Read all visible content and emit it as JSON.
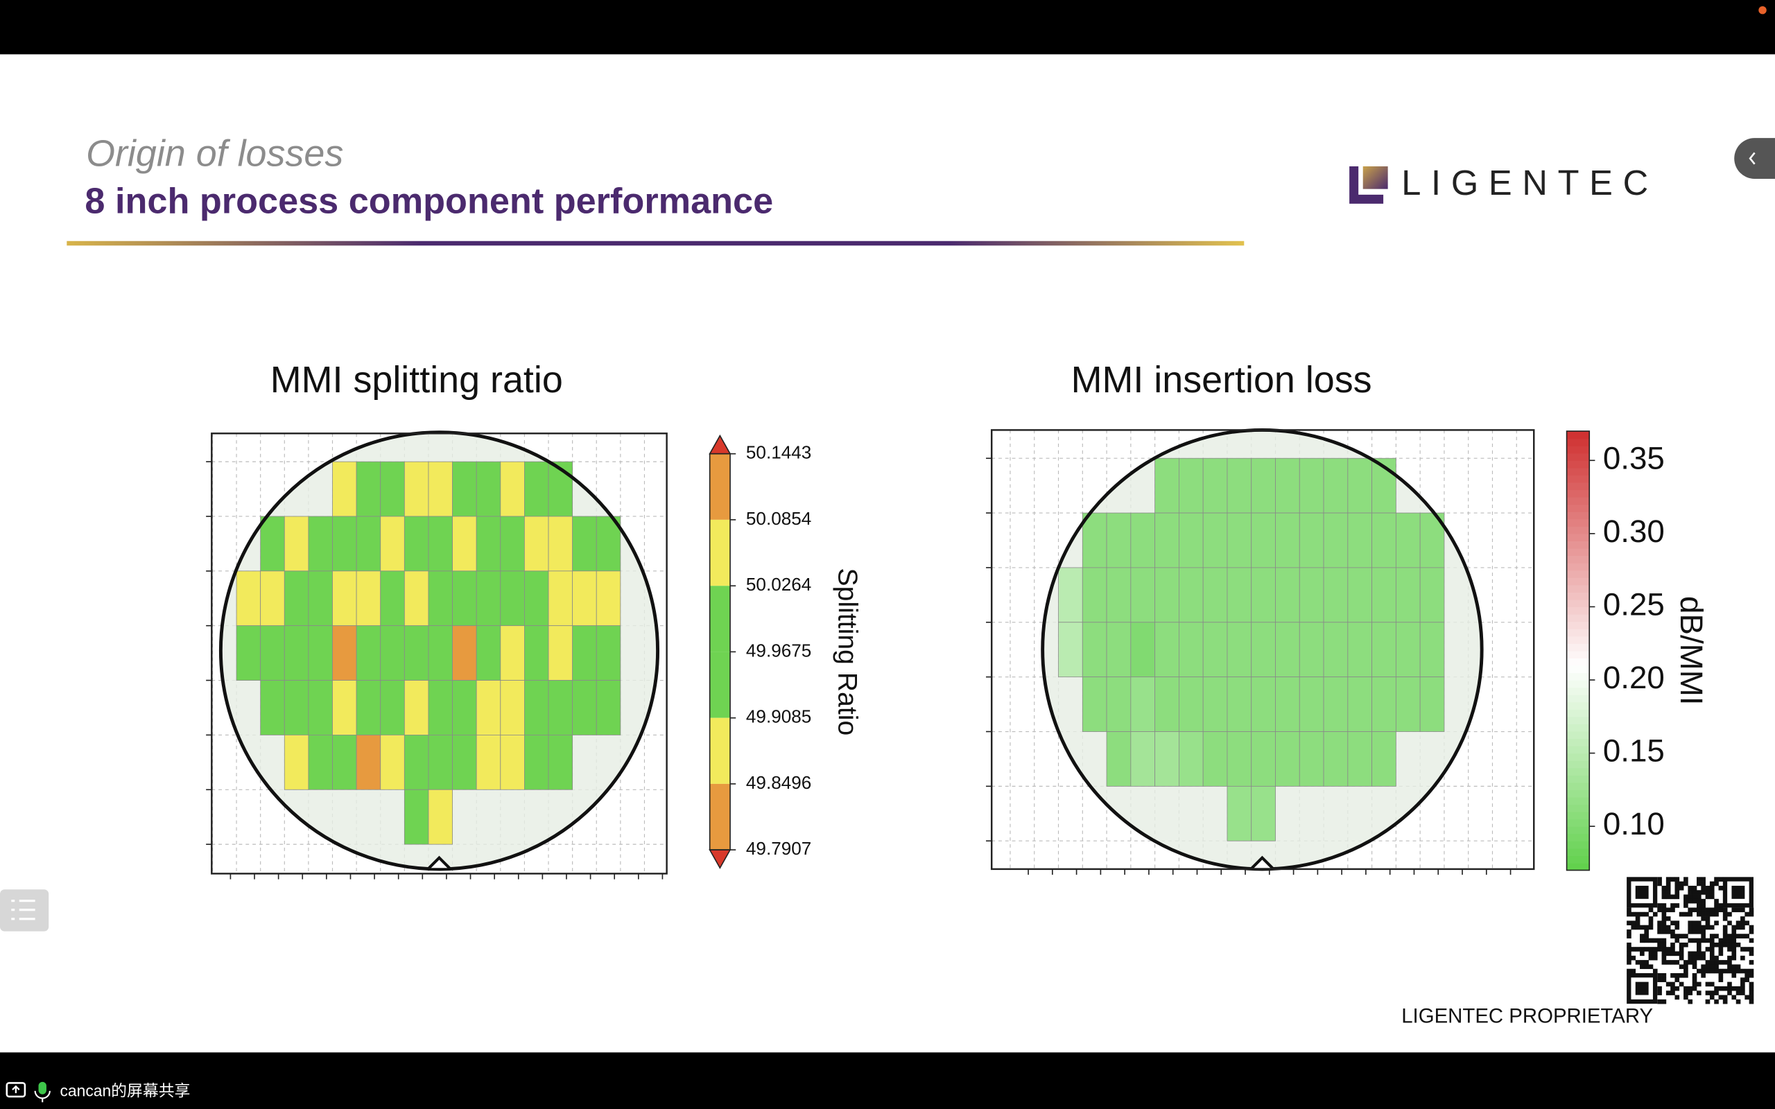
{
  "screen_share": {
    "user_label": "cancan的屏幕共享"
  },
  "slide": {
    "kicker": "Origin of losses",
    "title": "8 inch process component performance",
    "logo": "LIGENTEC",
    "footer": "LIGENTEC PROPRIETARY"
  },
  "chart_data": [
    {
      "type": "heatmap",
      "title": "MMI splitting ratio",
      "colorbar_label": "Splitting Ratio",
      "colormap": "discrete",
      "colorbar_lim": [
        49.7907,
        50.1443
      ],
      "colorbar_ticks": [
        50.1443,
        50.0854,
        50.0264,
        49.9675,
        49.9085,
        49.8496,
        49.7907
      ],
      "bin_colors": [
        "#e79a3f",
        "#f2ea5c",
        "#6fd352",
        "#6fd352",
        "#f2ea5c",
        "#e79a3f"
      ],
      "extend_color": "#d8392b",
      "values": [
        [
          null,
          null,
          null,
          null,
          null,
          50.05,
          49.97,
          49.97,
          50.05,
          50.05,
          49.97,
          49.97,
          50.05,
          49.97,
          49.97,
          null,
          null,
          null,
          null
        ],
        [
          null,
          null,
          49.97,
          50.05,
          49.97,
          49.97,
          49.97,
          50.05,
          49.97,
          49.97,
          50.05,
          49.97,
          49.97,
          50.05,
          50.05,
          49.97,
          49.97,
          null,
          null
        ],
        [
          null,
          50.05,
          50.05,
          49.97,
          49.97,
          50.05,
          50.05,
          49.97,
          50.05,
          49.97,
          49.97,
          49.97,
          49.97,
          49.97,
          50.05,
          50.05,
          50.05,
          null,
          null
        ],
        [
          null,
          49.97,
          49.97,
          49.97,
          49.97,
          49.82,
          49.97,
          49.97,
          49.97,
          49.97,
          49.82,
          49.97,
          50.05,
          49.97,
          50.05,
          49.97,
          49.97,
          null,
          null
        ],
        [
          null,
          null,
          49.97,
          49.97,
          49.97,
          50.05,
          49.97,
          49.97,
          50.05,
          49.97,
          49.97,
          50.05,
          50.05,
          49.97,
          49.97,
          49.97,
          49.97,
          null,
          null
        ],
        [
          null,
          null,
          null,
          50.05,
          49.97,
          49.97,
          49.82,
          50.05,
          49.97,
          49.97,
          49.97,
          50.05,
          50.05,
          49.97,
          49.97,
          null,
          null,
          null,
          null
        ],
        [
          null,
          null,
          null,
          null,
          null,
          null,
          null,
          null,
          49.97,
          50.05,
          null,
          null,
          null,
          null,
          null,
          null,
          null,
          null,
          null
        ]
      ]
    },
    {
      "type": "heatmap",
      "title": "MMI insertion loss",
      "colorbar_label": "dB/MMI",
      "colormap": "continuous",
      "colorbar_lim": [
        0.07,
        0.37
      ],
      "colorbar_ticks": [
        {
          "value": 0.35,
          "label": "0.35"
        },
        {
          "value": 0.3,
          "label": "0.30"
        },
        {
          "value": 0.25,
          "label": "0.25"
        },
        {
          "value": 0.2,
          "label": "0.20"
        },
        {
          "value": 0.15,
          "label": "0.15"
        },
        {
          "value": 0.1,
          "label": "0.10"
        }
      ],
      "colors": [
        "#5fd04a",
        "#ffffff",
        "#cf2f2f"
      ],
      "values": [
        [
          null,
          null,
          null,
          null,
          0.11,
          0.11,
          0.11,
          0.11,
          0.11,
          0.11,
          0.11,
          0.11,
          0.11,
          0.11,
          null,
          null
        ],
        [
          null,
          0.11,
          0.11,
          0.11,
          0.11,
          0.11,
          0.11,
          0.11,
          0.11,
          0.11,
          0.11,
          0.11,
          0.11,
          0.11,
          0.11,
          0.11
        ],
        [
          0.15,
          0.11,
          0.11,
          0.11,
          0.11,
          0.11,
          0.11,
          0.11,
          0.11,
          0.11,
          0.11,
          0.11,
          0.11,
          0.11,
          0.11,
          0.11
        ],
        [
          0.15,
          0.11,
          0.11,
          0.1,
          0.11,
          0.11,
          0.11,
          0.11,
          0.11,
          0.11,
          0.11,
          0.11,
          0.11,
          0.11,
          0.11,
          0.11
        ],
        [
          null,
          0.11,
          0.11,
          0.12,
          0.11,
          0.11,
          0.11,
          0.11,
          0.11,
          0.11,
          0.11,
          0.11,
          0.11,
          0.11,
          0.11,
          0.11
        ],
        [
          null,
          null,
          0.11,
          0.13,
          0.13,
          0.12,
          0.11,
          0.11,
          0.11,
          0.11,
          0.11,
          0.11,
          0.11,
          0.11,
          null,
          null
        ],
        [
          null,
          null,
          null,
          null,
          null,
          null,
          null,
          0.12,
          0.12,
          null,
          null,
          null,
          null,
          null,
          null,
          null
        ]
      ]
    }
  ]
}
